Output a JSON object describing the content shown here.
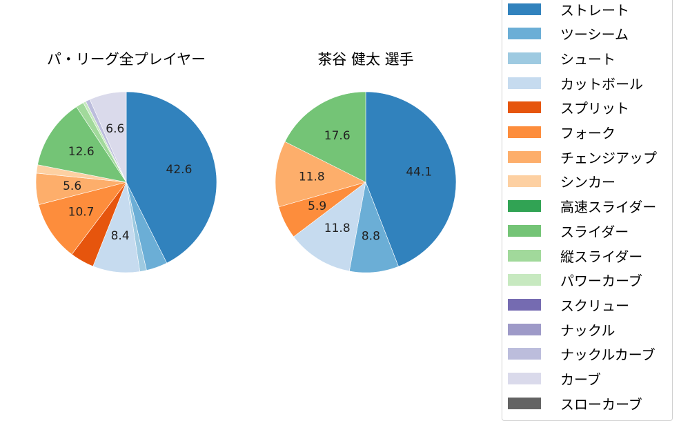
{
  "pitch_types": [
    {
      "name": "ストレート",
      "color": "#3182bd"
    },
    {
      "name": "ツーシーム",
      "color": "#6baed6"
    },
    {
      "name": "シュート",
      "color": "#9ecae1"
    },
    {
      "name": "カットボール",
      "color": "#c6dbef"
    },
    {
      "name": "スプリット",
      "color": "#e6550d"
    },
    {
      "name": "フォーク",
      "color": "#fd8d3c"
    },
    {
      "name": "チェンジアップ",
      "color": "#fdae6b"
    },
    {
      "name": "シンカー",
      "color": "#fdd0a2"
    },
    {
      "name": "高速スライダー",
      "color": "#31a354"
    },
    {
      "name": "スライダー",
      "color": "#74c476"
    },
    {
      "name": "縦スライダー",
      "color": "#a1d99b"
    },
    {
      "name": "パワーカーブ",
      "color": "#c7e9c0"
    },
    {
      "name": "スクリュー",
      "color": "#756bb1"
    },
    {
      "name": "ナックル",
      "color": "#9e9ac8"
    },
    {
      "name": "ナックルカーブ",
      "color": "#bcbddc"
    },
    {
      "name": "カーブ",
      "color": "#dadaeb"
    },
    {
      "name": "スローカーブ",
      "color": "#636363"
    }
  ],
  "chart_data": [
    {
      "type": "pie",
      "title": "パ・リーグ全プレイヤー",
      "categories": [
        "ストレート",
        "ツーシーム",
        "シュート",
        "カットボール",
        "スプリット",
        "フォーク",
        "チェンジアップ",
        "シンカー",
        "高速スライダー",
        "スライダー",
        "縦スライダー",
        "パワーカーブ",
        "スクリュー",
        "ナックル",
        "ナックルカーブ",
        "カーブ",
        "スローカーブ"
      ],
      "values": [
        42.6,
        3.8,
        1.2,
        8.4,
        4.3,
        10.7,
        5.6,
        1.5,
        0.0,
        12.6,
        1.4,
        0.5,
        0.0,
        0.0,
        0.8,
        6.6,
        0.0
      ],
      "labels_shown": [
        "42.6",
        "8.4",
        "10.7",
        "12.6"
      ],
      "start_angle": 90,
      "direction": "clockwise"
    },
    {
      "type": "pie",
      "title": "茶谷 健太  選手",
      "categories": [
        "ストレート",
        "ツーシーム",
        "シュート",
        "カットボール",
        "スプリット",
        "フォーク",
        "チェンジアップ",
        "シンカー",
        "高速スライダー",
        "スライダー",
        "縦スライダー",
        "パワーカーブ",
        "スクリュー",
        "ナックル",
        "ナックルカーブ",
        "カーブ",
        "スローカーブ"
      ],
      "values": [
        44.1,
        8.8,
        0.0,
        11.8,
        0.0,
        5.9,
        11.8,
        0.0,
        0.0,
        17.6,
        0.0,
        0.0,
        0.0,
        0.0,
        0.0,
        0.0,
        0.0
      ],
      "labels_shown": [
        "44.1",
        "8.8",
        "11.8",
        "5.9",
        "11.8",
        "17.6"
      ],
      "start_angle": 90,
      "direction": "clockwise"
    }
  ],
  "titles": {
    "left": "パ・リーグ全プレイヤー",
    "right": "茶谷 健太  選手"
  }
}
